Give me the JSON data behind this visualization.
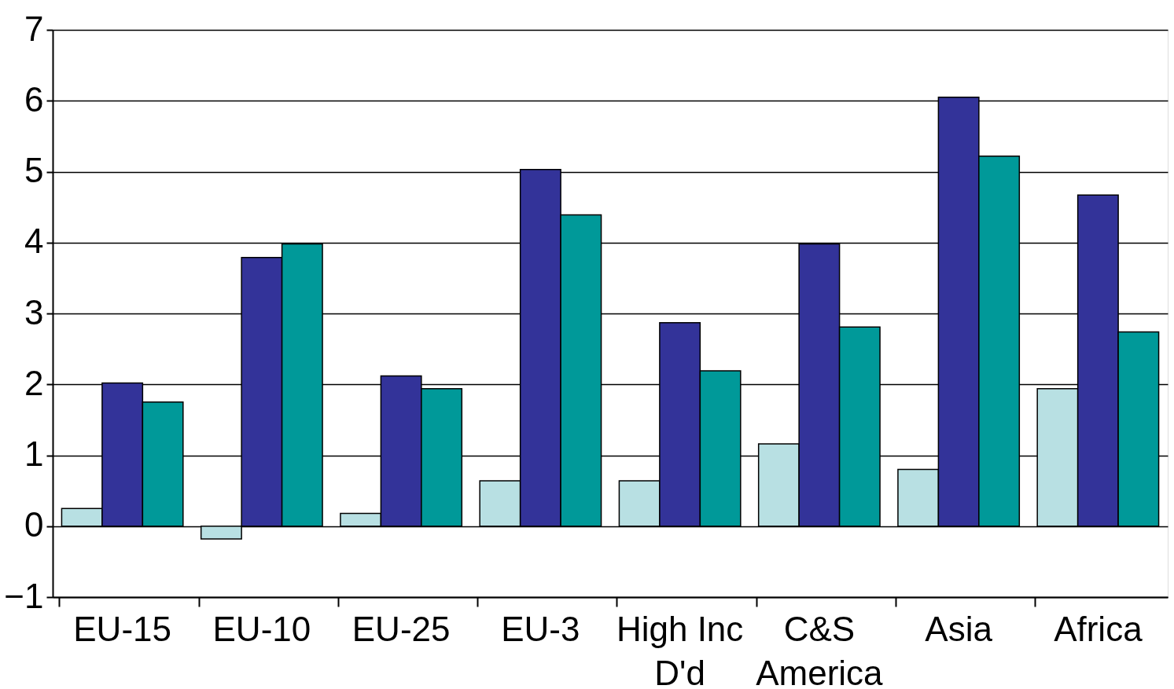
{
  "chart_data": {
    "type": "bar",
    "categories": [
      "EU-15",
      "EU-10",
      "EU-25",
      "EU-3",
      "High Inc\nD'd",
      "C&S\nAmerica",
      "Asia",
      "Africa"
    ],
    "series": [
      {
        "color": "#b8e0e3",
        "values": [
          0.25,
          -0.18,
          0.18,
          0.64,
          0.64,
          1.16,
          0.8,
          1.94
        ]
      },
      {
        "color": "#333399",
        "values": [
          2.02,
          3.79,
          2.12,
          5.03,
          2.87,
          3.98,
          6.05,
          4.67
        ]
      },
      {
        "color": "#009999",
        "values": [
          1.75,
          3.98,
          1.94,
          4.39,
          2.19,
          2.81,
          5.22,
          2.74
        ]
      }
    ],
    "ylim": [
      -1,
      7
    ],
    "yticks": [
      -1,
      0,
      1,
      2,
      3,
      4,
      5,
      6,
      7
    ],
    "grid": "y",
    "legend": false
  }
}
